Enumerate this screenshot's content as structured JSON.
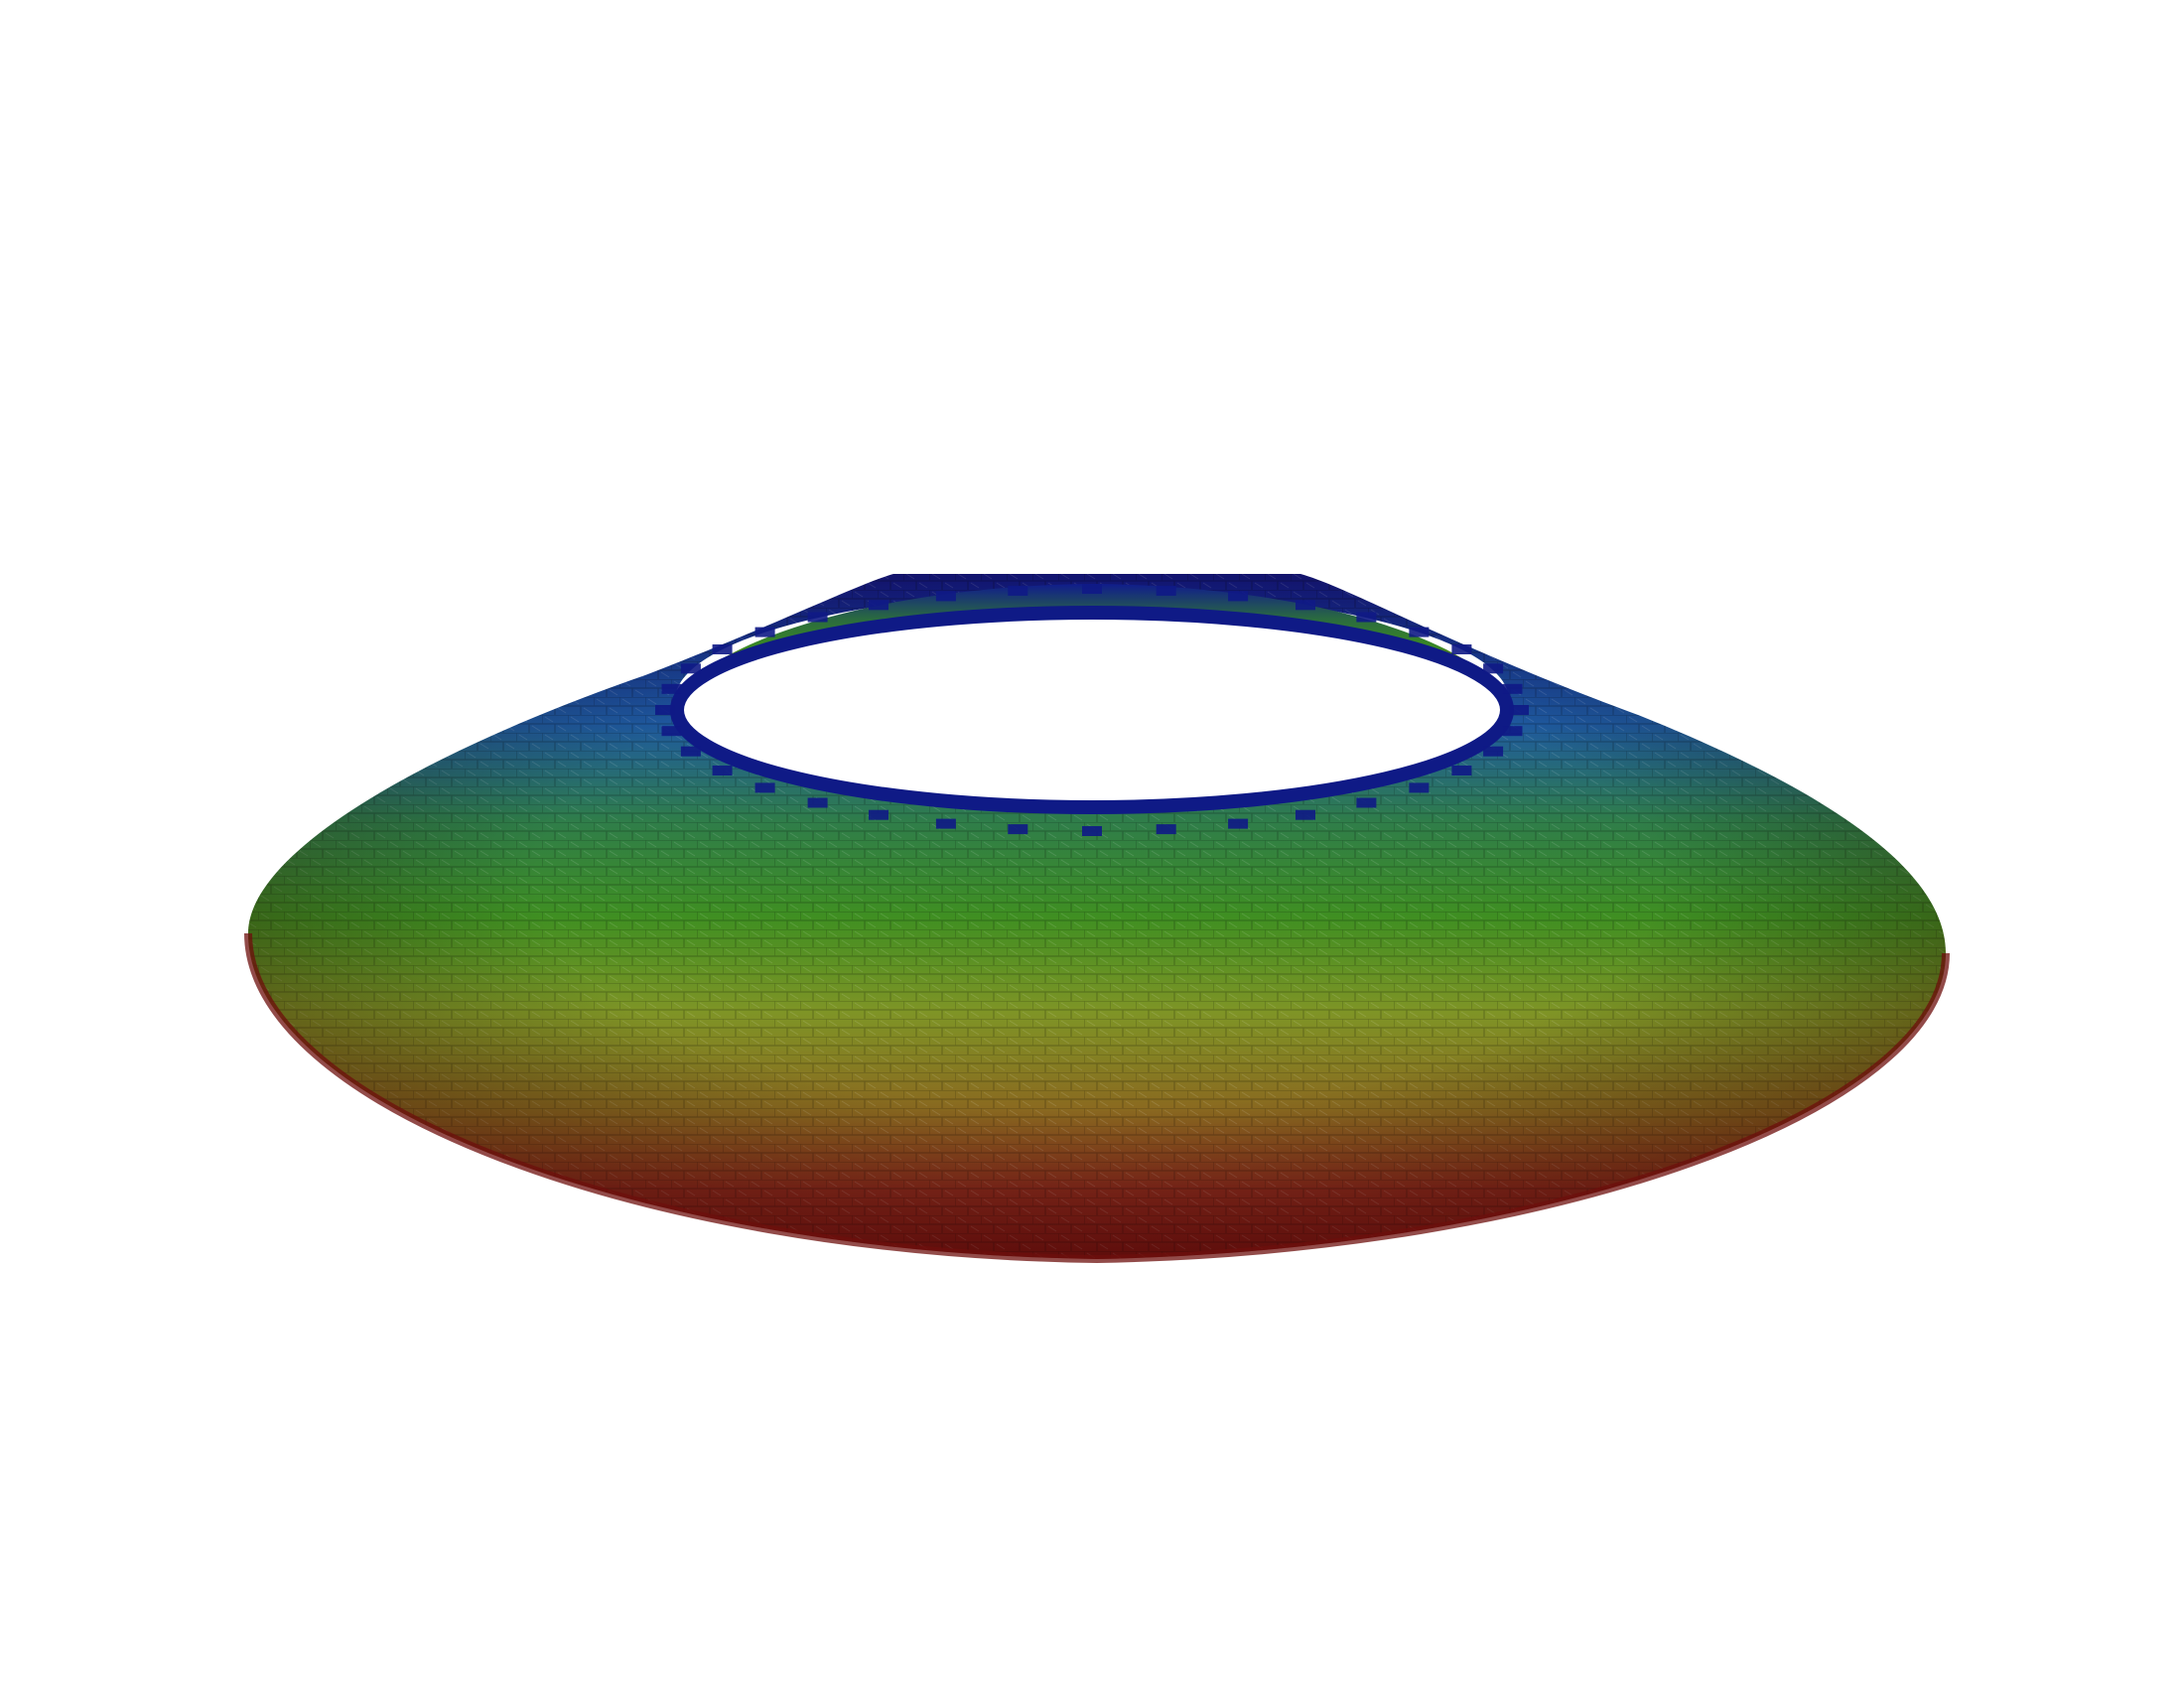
{
  "scene": {
    "background_color": "#ffffff",
    "object": "tiled-annular-dome-mesh",
    "colormap": {
      "name": "rainbow",
      "stops": [
        "#10188a",
        "#1f5aa0",
        "#2f7d4a",
        "#3f8f22",
        "#7f9426",
        "#8a6a20",
        "#8a2a1c",
        "#7a1512"
      ]
    },
    "inner_band_colors": [
      "#101c8c",
      "#2a6a40",
      "#3b8a22",
      "#8b3a1c",
      "#8c1d16"
    ],
    "tile_line_color": "#000000"
  }
}
